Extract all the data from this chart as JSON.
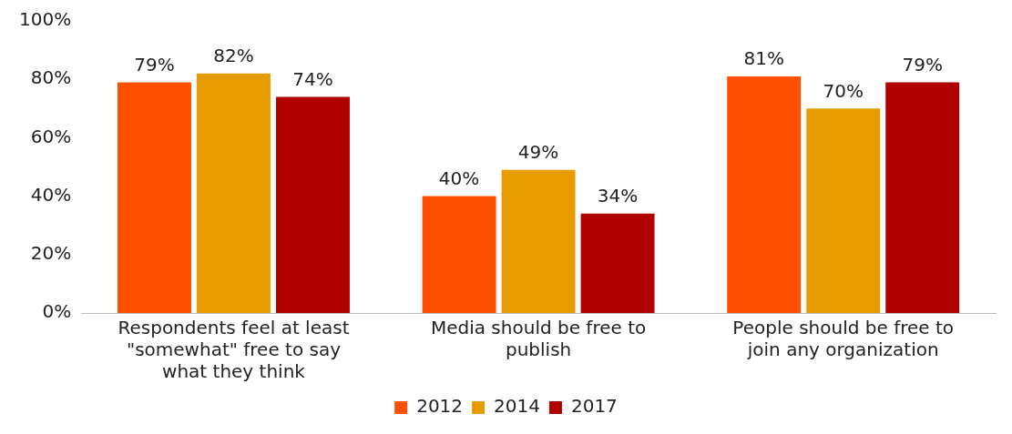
{
  "chart_data": {
    "type": "bar",
    "categories": [
      "Respondents feel at least \"somewhat\" free to say what they think",
      "Media should be free to publish",
      "People should be free to join any organization"
    ],
    "series": [
      {
        "name": "2012",
        "color": "#ff5000",
        "values": [
          79,
          40,
          81
        ],
        "value_labels": [
          "79%",
          "40%",
          "81%"
        ]
      },
      {
        "name": "2014",
        "color": "#e69c00",
        "values": [
          82,
          49,
          70
        ],
        "value_labels": [
          "82%",
          "49%",
          "70%"
        ]
      },
      {
        "name": "2017",
        "color": "#b00000",
        "values": [
          74,
          34,
          79
        ],
        "value_labels": [
          "74%",
          "34%",
          "79%"
        ]
      }
    ],
    "ylim": [
      0,
      100
    ],
    "yticks": [
      {
        "value": 0,
        "label": "0%"
      },
      {
        "value": 20,
        "label": "20%"
      },
      {
        "value": 40,
        "label": "40%"
      },
      {
        "value": 60,
        "label": "60%"
      },
      {
        "value": 80,
        "label": "80%"
      },
      {
        "value": 100,
        "label": "100%"
      }
    ],
    "grid": false,
    "legend": "bottom"
  }
}
